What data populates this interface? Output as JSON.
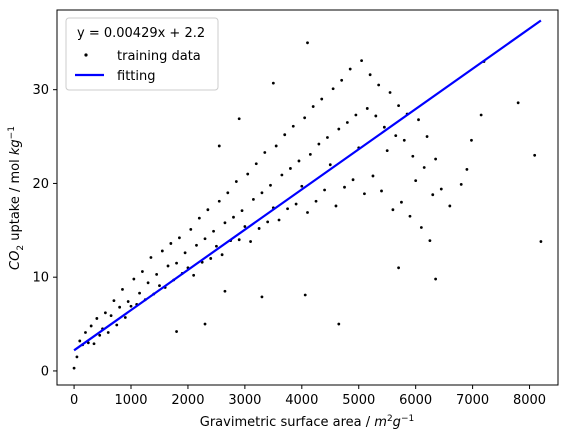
{
  "chart_data": {
    "type": "scatter",
    "xlabel": "Gravimetric surface area / m²g⁻¹",
    "ylabel": "CO₂ uptake / mol kg⁻¹",
    "xlim": [
      -300,
      8500
    ],
    "ylim": [
      -1.5,
      38.5
    ],
    "xticks": [
      "0",
      "1000",
      "2000",
      "3000",
      "4000",
      "5000",
      "6000",
      "7000",
      "8000"
    ],
    "yticks": [
      "0",
      "10",
      "20",
      "30"
    ],
    "grid": false,
    "legend": {
      "placement": "top-left",
      "title": "y = 0.00429x + 2.2",
      "entries": [
        {
          "name": "training data",
          "marker": "point",
          "color": "#000000"
        },
        {
          "name": "fitting",
          "marker": "line",
          "color": "#0000ff"
        }
      ]
    },
    "series": [
      {
        "name": "training data",
        "kind": "scatter",
        "color": "#000000",
        "points": [
          [
            0,
            0.3
          ],
          [
            50,
            1.5
          ],
          [
            100,
            3.2
          ],
          [
            150,
            2.8
          ],
          [
            200,
            4.1
          ],
          [
            250,
            3.0
          ],
          [
            300,
            4.8
          ],
          [
            350,
            2.9
          ],
          [
            400,
            5.6
          ],
          [
            450,
            3.8
          ],
          [
            500,
            4.5
          ],
          [
            550,
            6.2
          ],
          [
            600,
            4.1
          ],
          [
            650,
            5.9
          ],
          [
            700,
            7.5
          ],
          [
            750,
            4.9
          ],
          [
            800,
            6.8
          ],
          [
            850,
            8.7
          ],
          [
            900,
            5.7
          ],
          [
            950,
            7.4
          ],
          [
            1000,
            6.9
          ],
          [
            1050,
            9.8
          ],
          [
            1100,
            7.1
          ],
          [
            1150,
            8.3
          ],
          [
            1200,
            10.6
          ],
          [
            1250,
            7.6
          ],
          [
            1300,
            9.4
          ],
          [
            1350,
            12.1
          ],
          [
            1400,
            8.2
          ],
          [
            1450,
            10.3
          ],
          [
            1500,
            9.1
          ],
          [
            1550,
            12.8
          ],
          [
            1600,
            8.9
          ],
          [
            1650,
            11.2
          ],
          [
            1700,
            13.6
          ],
          [
            1750,
            9.7
          ],
          [
            1800,
            11.5
          ],
          [
            1850,
            14.2
          ],
          [
            1900,
            10.4
          ],
          [
            1950,
            12.6
          ],
          [
            2000,
            11.0
          ],
          [
            2050,
            15.1
          ],
          [
            2100,
            10.2
          ],
          [
            2150,
            13.4
          ],
          [
            2200,
            16.3
          ],
          [
            2250,
            11.6
          ],
          [
            2300,
            14.1
          ],
          [
            2350,
            17.2
          ],
          [
            2400,
            12.0
          ],
          [
            2450,
            14.9
          ],
          [
            2500,
            13.3
          ],
          [
            2550,
            18.1
          ],
          [
            2600,
            12.4
          ],
          [
            2650,
            15.8
          ],
          [
            2700,
            19.0
          ],
          [
            2750,
            13.9
          ],
          [
            2800,
            16.4
          ],
          [
            2850,
            20.2
          ],
          [
            2900,
            14.0
          ],
          [
            2950,
            17.1
          ],
          [
            3000,
            15.4
          ],
          [
            3050,
            21.0
          ],
          [
            3100,
            13.8
          ],
          [
            3150,
            18.3
          ],
          [
            3200,
            22.1
          ],
          [
            3250,
            15.2
          ],
          [
            3300,
            19.0
          ],
          [
            3350,
            23.3
          ],
          [
            3400,
            15.9
          ],
          [
            3450,
            19.8
          ],
          [
            3500,
            17.4
          ],
          [
            3550,
            24.0
          ],
          [
            3600,
            16.1
          ],
          [
            3650,
            20.9
          ],
          [
            3700,
            25.2
          ],
          [
            3750,
            17.3
          ],
          [
            3800,
            21.6
          ],
          [
            3850,
            26.1
          ],
          [
            3900,
            17.8
          ],
          [
            3950,
            22.4
          ],
          [
            4000,
            19.7
          ],
          [
            4050,
            27.0
          ],
          [
            4100,
            16.9
          ],
          [
            4150,
            23.1
          ],
          [
            4200,
            28.2
          ],
          [
            4250,
            18.1
          ],
          [
            4300,
            24.2
          ],
          [
            4350,
            29.0
          ],
          [
            4400,
            19.3
          ],
          [
            4450,
            24.9
          ],
          [
            4500,
            22.0
          ],
          [
            4550,
            30.1
          ],
          [
            4600,
            17.6
          ],
          [
            4650,
            25.8
          ],
          [
            4700,
            31.0
          ],
          [
            4750,
            19.6
          ],
          [
            4800,
            26.5
          ],
          [
            4850,
            32.2
          ],
          [
            4900,
            20.4
          ],
          [
            4950,
            27.3
          ],
          [
            5000,
            23.8
          ],
          [
            5050,
            33.1
          ],
          [
            5100,
            18.9
          ],
          [
            5150,
            28.0
          ],
          [
            5200,
            31.6
          ],
          [
            5250,
            20.8
          ],
          [
            5300,
            27.2
          ],
          [
            5350,
            30.5
          ],
          [
            5400,
            19.2
          ],
          [
            5450,
            26.0
          ],
          [
            5500,
            23.5
          ],
          [
            5550,
            29.7
          ],
          [
            5600,
            17.2
          ],
          [
            5650,
            25.1
          ],
          [
            5700,
            28.3
          ],
          [
            5750,
            18.0
          ],
          [
            5800,
            24.6
          ],
          [
            5850,
            27.4
          ],
          [
            5900,
            16.5
          ],
          [
            5950,
            22.9
          ],
          [
            6000,
            20.3
          ],
          [
            6050,
            26.8
          ],
          [
            6100,
            15.3
          ],
          [
            6150,
            21.7
          ],
          [
            6200,
            25.0
          ],
          [
            6250,
            13.9
          ],
          [
            6300,
            18.8
          ],
          [
            6350,
            22.6
          ],
          [
            6450,
            19.4
          ],
          [
            6600,
            17.6
          ],
          [
            6800,
            19.9
          ],
          [
            6980,
            24.6
          ],
          [
            7150,
            27.3
          ],
          [
            7200,
            33.0
          ],
          [
            7800,
            28.6
          ],
          [
            8090,
            23.0
          ],
          [
            8200,
            13.8
          ],
          [
            4100,
            35.0
          ],
          [
            3500,
            30.7
          ],
          [
            2900,
            26.9
          ],
          [
            2550,
            24.0
          ],
          [
            3300,
            7.9
          ],
          [
            4650,
            5.0
          ],
          [
            2650,
            8.5
          ],
          [
            4060,
            8.1
          ],
          [
            1800,
            4.2
          ],
          [
            2300,
            5.0
          ],
          [
            6350,
            9.8
          ],
          [
            5700,
            11.0
          ],
          [
            6900,
            21.5
          ]
        ]
      },
      {
        "name": "fitting",
        "kind": "line",
        "color": "#0000ff",
        "slope": 0.00429,
        "intercept": 2.2,
        "x_range": [
          0,
          8200
        ]
      }
    ]
  }
}
